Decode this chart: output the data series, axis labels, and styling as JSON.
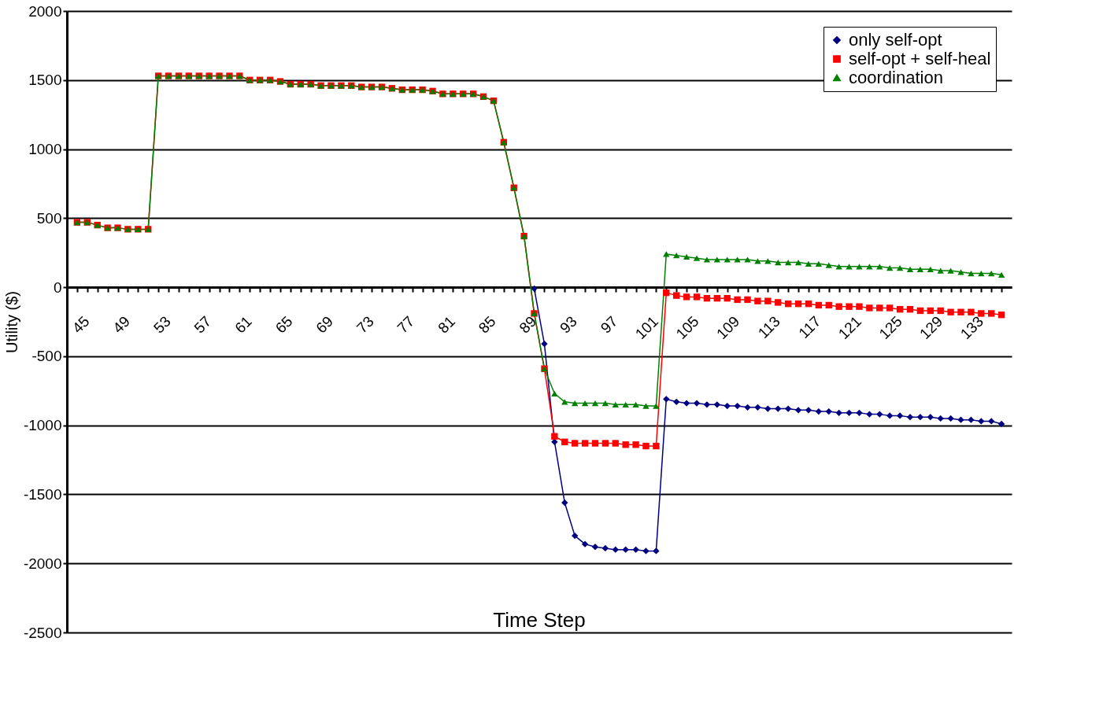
{
  "chart_data": {
    "type": "line",
    "xlabel": "Time Step",
    "ylabel": "Utility ($)",
    "categories": [
      "45",
      null,
      null,
      null,
      "49",
      null,
      null,
      null,
      "53",
      null,
      null,
      null,
      "57",
      null,
      null,
      null,
      "61",
      null,
      null,
      null,
      "65",
      null,
      null,
      null,
      "69",
      null,
      null,
      null,
      "73",
      null,
      null,
      null,
      "77",
      null,
      null,
      null,
      "81",
      null,
      null,
      null,
      "85",
      null,
      null,
      null,
      "89",
      null,
      null,
      null,
      "93",
      null,
      null,
      null,
      "97",
      null,
      null,
      null,
      "101",
      null,
      null,
      null,
      "105",
      null,
      null,
      null,
      "109",
      null,
      null,
      null,
      "113",
      null,
      null,
      null,
      "117",
      null,
      null,
      null,
      "121",
      null,
      null,
      null,
      "125",
      null,
      null,
      null,
      "129",
      null,
      null,
      null,
      "133",
      null,
      null,
      null
    ],
    "ylim": [
      -2500,
      2000
    ],
    "yticks": [
      -2500,
      -2000,
      -1500,
      -1000,
      -500,
      0,
      500,
      1000,
      1500,
      2000
    ],
    "grid": "y",
    "legend": "top right",
    "line_style": "solid",
    "series": [
      {
        "name": "only self-opt",
        "color": "#000080",
        "marker": "diamond",
        "values": [
          null,
          null,
          null,
          null,
          null,
          null,
          null,
          null,
          null,
          null,
          null,
          null,
          null,
          null,
          null,
          null,
          null,
          null,
          null,
          null,
          null,
          null,
          null,
          null,
          null,
          null,
          null,
          null,
          null,
          null,
          null,
          null,
          null,
          null,
          null,
          null,
          null,
          null,
          null,
          null,
          null,
          null,
          null,
          null,
          null,
          -10,
          -410,
          -1120,
          -1560,
          -1800,
          -1860,
          -1880,
          -1890,
          -1900,
          -1900,
          -1900,
          -1910,
          -1910,
          -810,
          -830,
          -840,
          -840,
          -850,
          -850,
          -860,
          -860,
          -870,
          -870,
          -880,
          -880,
          -880,
          -890,
          -890,
          -900,
          -900,
          -910,
          -910,
          -910,
          -920,
          -920,
          -930,
          -930,
          -940,
          -940,
          -940,
          -950,
          -950,
          -960,
          -960,
          -970,
          -970,
          -990
        ]
      },
      {
        "name": "self-opt + self-heal",
        "color": "#ff0000",
        "marker": "square",
        "values": [
          470,
          470,
          450,
          430,
          430,
          420,
          420,
          420,
          1530,
          1530,
          1530,
          1530,
          1530,
          1530,
          1530,
          1530,
          1530,
          1500,
          1500,
          1500,
          1490,
          1470,
          1470,
          1470,
          1460,
          1460,
          1460,
          1460,
          1450,
          1450,
          1450,
          1440,
          1430,
          1430,
          1430,
          1420,
          1400,
          1400,
          1400,
          1400,
          1380,
          1350,
          1050,
          720,
          370,
          -190,
          -590,
          -1080,
          -1120,
          -1130,
          -1130,
          -1130,
          -1130,
          -1130,
          -1140,
          -1140,
          -1150,
          -1150,
          -40,
          -60,
          -70,
          -70,
          -80,
          -80,
          -80,
          -90,
          -90,
          -100,
          -100,
          -110,
          -120,
          -120,
          -120,
          -130,
          -130,
          -140,
          -140,
          -140,
          -150,
          -150,
          -150,
          -160,
          -160,
          -170,
          -170,
          -170,
          -180,
          -180,
          -180,
          -190,
          -190,
          -200
        ]
      },
      {
        "name": "coordination",
        "color": "#008000",
        "marker": "triangle",
        "values": [
          470,
          470,
          450,
          430,
          430,
          420,
          420,
          420,
          1530,
          1530,
          1530,
          1530,
          1530,
          1530,
          1530,
          1530,
          1530,
          1500,
          1500,
          1500,
          1490,
          1470,
          1470,
          1470,
          1460,
          1460,
          1460,
          1460,
          1450,
          1450,
          1450,
          1440,
          1430,
          1430,
          1430,
          1420,
          1400,
          1400,
          1400,
          1400,
          1380,
          1350,
          1050,
          720,
          370,
          -190,
          -590,
          -770,
          -830,
          -840,
          -840,
          -840,
          -840,
          -850,
          -850,
          -850,
          -860,
          -860,
          240,
          230,
          220,
          210,
          200,
          200,
          200,
          200,
          200,
          190,
          190,
          180,
          180,
          180,
          170,
          170,
          160,
          150,
          150,
          150,
          150,
          150,
          140,
          140,
          130,
          130,
          130,
          120,
          120,
          110,
          100,
          100,
          100,
          90
        ]
      }
    ]
  }
}
